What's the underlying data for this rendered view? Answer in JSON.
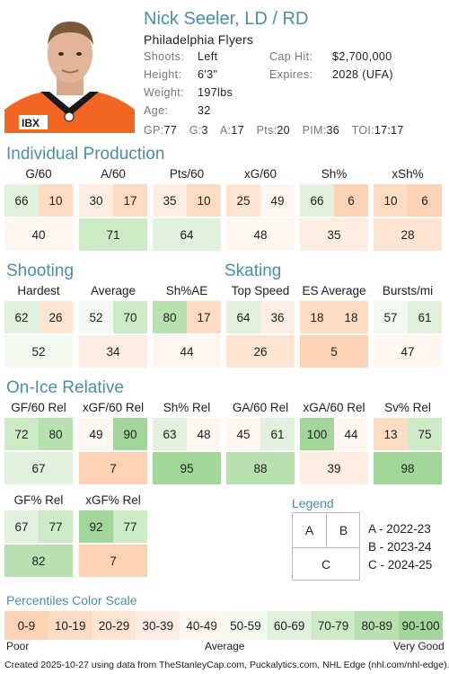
{
  "player": {
    "name": "Nick Seeler, LD / RD",
    "team": "Philadelphia Flyers",
    "shoots_label": "Shoots:",
    "shoots": "Left",
    "height_label": "Height:",
    "height": "6'3\"",
    "weight_label": "Weight:",
    "weight": "197lbs",
    "age_label": "Age:",
    "age": "32",
    "caphit_label": "Cap Hit:",
    "caphit": "$2,700,000",
    "expires_label": "Expires:",
    "expires": "2028 (UFA)",
    "jersey_text": "IBX"
  },
  "statline": [
    {
      "label": "GP:",
      "value": "77"
    },
    {
      "label": "G:",
      "value": "3"
    },
    {
      "label": "A:",
      "value": "17"
    },
    {
      "label": "Pts:",
      "value": "20"
    },
    {
      "label": "PIM:",
      "value": "36"
    },
    {
      "label": "TOI:",
      "value": "17:17"
    }
  ],
  "sections": {
    "production": "Individual Production",
    "shooting": "Shooting",
    "skating": "Skating",
    "onice": "On-Ice Relative"
  },
  "metrics": [
    {
      "label": "G/60",
      "a": "66",
      "b": "10",
      "c": "40"
    },
    {
      "label": "A/60",
      "a": "30",
      "b": "17",
      "c": "71"
    },
    {
      "label": "Pts/60",
      "a": "35",
      "b": "10",
      "c": "64"
    },
    {
      "label": "xG/60",
      "a": "25",
      "b": "49",
      "c": "48"
    },
    {
      "label": "Sh%",
      "a": "66",
      "b": "6",
      "c": "35"
    },
    {
      "label": "xSh%",
      "a": "10",
      "b": "6",
      "c": "28"
    },
    {
      "label": "Hardest",
      "a": "62",
      "b": "26",
      "c": "52"
    },
    {
      "label": "Average",
      "a": "52",
      "b": "70",
      "c": "34"
    },
    {
      "label": "Sh%AE",
      "a": "80",
      "b": "17",
      "c": "44"
    },
    {
      "label": "Top Speed",
      "a": "64",
      "b": "36",
      "c": "26"
    },
    {
      "label": "ES Average",
      "a": "18",
      "b": "18",
      "c": "5"
    },
    {
      "label": "Bursts/mi",
      "a": "57",
      "b": "61",
      "c": "47"
    },
    {
      "label": "GF/60 Rel",
      "a": "72",
      "b": "80",
      "c": "67"
    },
    {
      "label": "xGF/60 Rel",
      "a": "49",
      "b": "90",
      "c": "7"
    },
    {
      "label": "Sh% Rel",
      "a": "63",
      "b": "48",
      "c": "95"
    },
    {
      "label": "GA/60 Rel",
      "a": "45",
      "b": "61",
      "c": "88"
    },
    {
      "label": "xGA/60 Rel",
      "a": "100",
      "b": "44",
      "c": "39"
    },
    {
      "label": "Sv% Rel",
      "a": "13",
      "b": "75",
      "c": "98"
    },
    {
      "label": "GF% Rel",
      "a": "67",
      "b": "77",
      "c": "82"
    },
    {
      "label": "xGF% Rel",
      "a": "92",
      "b": "77",
      "c": "7"
    }
  ],
  "legend": {
    "title": "Legend",
    "a": "A",
    "b": "B",
    "c": "C",
    "a_text": "A - 2022-23",
    "b_text": "B - 2023-24",
    "c_text": "C - 2024-25"
  },
  "scale": {
    "title": "Percentiles Color Scale",
    "buckets": [
      "0-9",
      "10-19",
      "20-29",
      "30-39",
      "40-49",
      "50-59",
      "60-69",
      "70-79",
      "80-89",
      "90-100"
    ],
    "colors": [
      "#fbd3b4",
      "#fcdcc3",
      "#fde5d2",
      "#feede2",
      "#fef6f0",
      "#f3f9f1",
      "#e1f1dd",
      "#cdeac7",
      "#b8e0b0",
      "#a3d69a"
    ],
    "poor": "Poor",
    "average": "Average",
    "very_good": "Very Good"
  },
  "footer": "Created 2025-10-27 using data from TheStanleyCap.com, Puckalytics.com, NHL Edge (nhl.com/nhl-edge)."
}
